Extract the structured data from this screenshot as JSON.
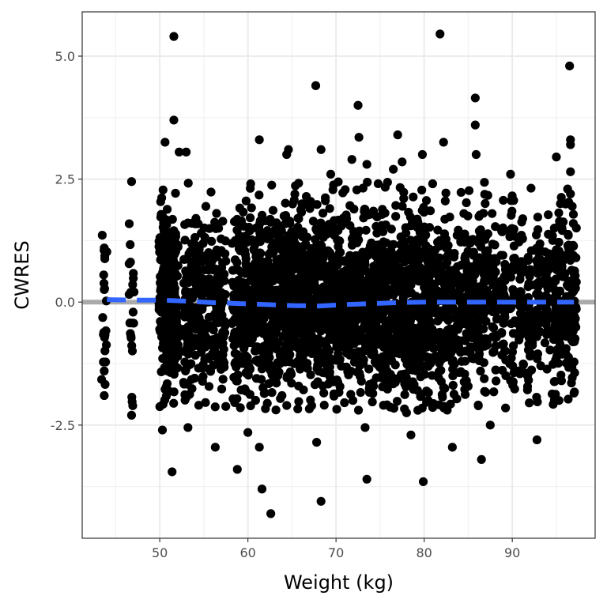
{
  "chart_data": {
    "type": "scatter",
    "title": "",
    "xlabel": "Weight (kg)",
    "ylabel": "CWRES",
    "xlim": [
      41.2,
      99.4
    ],
    "ylim": [
      -4.8,
      5.9
    ],
    "x_ticks": [
      50,
      60,
      70,
      80,
      90
    ],
    "x_tick_labels": [
      "50",
      "60",
      "70",
      "80",
      "90"
    ],
    "y_ticks": [
      -2.5,
      0.0,
      2.5,
      5.0
    ],
    "y_tick_labels": [
      "-2.5",
      "0.0",
      "2.5",
      "5.0"
    ],
    "grid": true,
    "reference_line": {
      "y": 0,
      "color": "#aaaaaa"
    },
    "smooth": {
      "style": "dashed",
      "color": "#3366ff",
      "points": [
        [
          44,
          0.05
        ],
        [
          47,
          0.04
        ],
        [
          50,
          0.04
        ],
        [
          53,
          0.02
        ],
        [
          56,
          -0.01
        ],
        [
          59,
          -0.03
        ],
        [
          62,
          -0.05
        ],
        [
          65,
          -0.07
        ],
        [
          68,
          -0.08
        ],
        [
          71,
          -0.05
        ],
        [
          74,
          -0.03
        ],
        [
          77,
          -0.01
        ],
        [
          80,
          0.0
        ],
        [
          83,
          0.0
        ],
        [
          86,
          0.0
        ],
        [
          89,
          0.0
        ],
        [
          92,
          0.0
        ],
        [
          95,
          0.0
        ],
        [
          97,
          0.0
        ]
      ]
    },
    "point_color": "#000000",
    "weights": [
      43.7,
      46.8,
      50.2,
      50.6,
      51.0,
      51.4,
      51.8,
      53.0,
      53.5,
      54.2,
      55.0,
      55.8,
      56.5,
      57.2,
      58.5,
      59.0,
      59.5,
      60.0,
      60.5,
      61.0,
      61.5,
      62.0,
      62.5,
      63.0,
      63.5,
      64.0,
      64.5,
      65.0,
      65.5,
      66.0,
      66.5,
      67.0,
      67.5,
      68.0,
      68.5,
      69.0,
      69.5,
      70.0,
      70.5,
      71.0,
      71.5,
      72.0,
      72.5,
      73.0,
      73.5,
      74.0,
      74.5,
      75.0,
      75.5,
      76.0,
      76.5,
      77.0,
      77.5,
      78.0,
      78.5,
      79.0,
      79.5,
      80.0,
      80.5,
      81.0,
      81.8,
      82.5,
      83.2,
      84.0,
      84.8,
      85.5,
      86.2,
      87.0,
      88.0,
      89.0,
      90.0,
      91.0,
      92.0,
      93.0,
      94.0,
      94.8,
      95.5,
      96.3,
      97.0
    ],
    "outliers": [
      [
        51.6,
        5.4
      ],
      [
        51.6,
        3.7
      ],
      [
        50.6,
        3.25
      ],
      [
        51.4,
        -3.45
      ],
      [
        50.3,
        -2.6
      ],
      [
        46.8,
        -2.3
      ],
      [
        43.7,
        -1.9
      ],
      [
        43.7,
        -1.4
      ],
      [
        43.7,
        1.1
      ],
      [
        46.8,
        2.45
      ],
      [
        53.0,
        3.05
      ],
      [
        52.2,
        3.05
      ],
      [
        53.2,
        -2.55
      ],
      [
        56.3,
        -2.95
      ],
      [
        58.8,
        -3.4
      ],
      [
        60.0,
        -2.65
      ],
      [
        61.3,
        -2.95
      ],
      [
        61.6,
        -3.8
      ],
      [
        62.6,
        -4.3
      ],
      [
        61.3,
        3.3
      ],
      [
        64.6,
        3.1
      ],
      [
        64.4,
        3.0
      ],
      [
        67.7,
        4.4
      ],
      [
        68.3,
        3.1
      ],
      [
        68.3,
        -4.05
      ],
      [
        67.8,
        -2.85
      ],
      [
        69.4,
        2.6
      ],
      [
        72.5,
        4.0
      ],
      [
        72.6,
        3.35
      ],
      [
        71.8,
        2.9
      ],
      [
        73.5,
        2.8
      ],
      [
        73.5,
        -3.6
      ],
      [
        73.3,
        -2.55
      ],
      [
        77.0,
        3.4
      ],
      [
        76.5,
        2.7
      ],
      [
        77.5,
        2.85
      ],
      [
        78.0,
        -2.25
      ],
      [
        78.5,
        -2.7
      ],
      [
        79.9,
        -3.65
      ],
      [
        79.8,
        3.0
      ],
      [
        81.8,
        5.45
      ],
      [
        82.2,
        3.25
      ],
      [
        83.2,
        -2.95
      ],
      [
        85.8,
        4.15
      ],
      [
        85.8,
        3.6
      ],
      [
        85.9,
        3.0
      ],
      [
        86.5,
        -3.2
      ],
      [
        87.5,
        -2.5
      ],
      [
        89.8,
        2.6
      ],
      [
        92.8,
        -2.8
      ],
      [
        95.0,
        2.95
      ],
      [
        96.5,
        4.8
      ],
      [
        96.6,
        3.3
      ],
      [
        96.6,
        3.2
      ],
      [
        96.6,
        2.65
      ],
      [
        96.6,
        2.2
      ],
      [
        95.3,
        -2.0
      ],
      [
        97.0,
        -1.85
      ]
    ]
  }
}
